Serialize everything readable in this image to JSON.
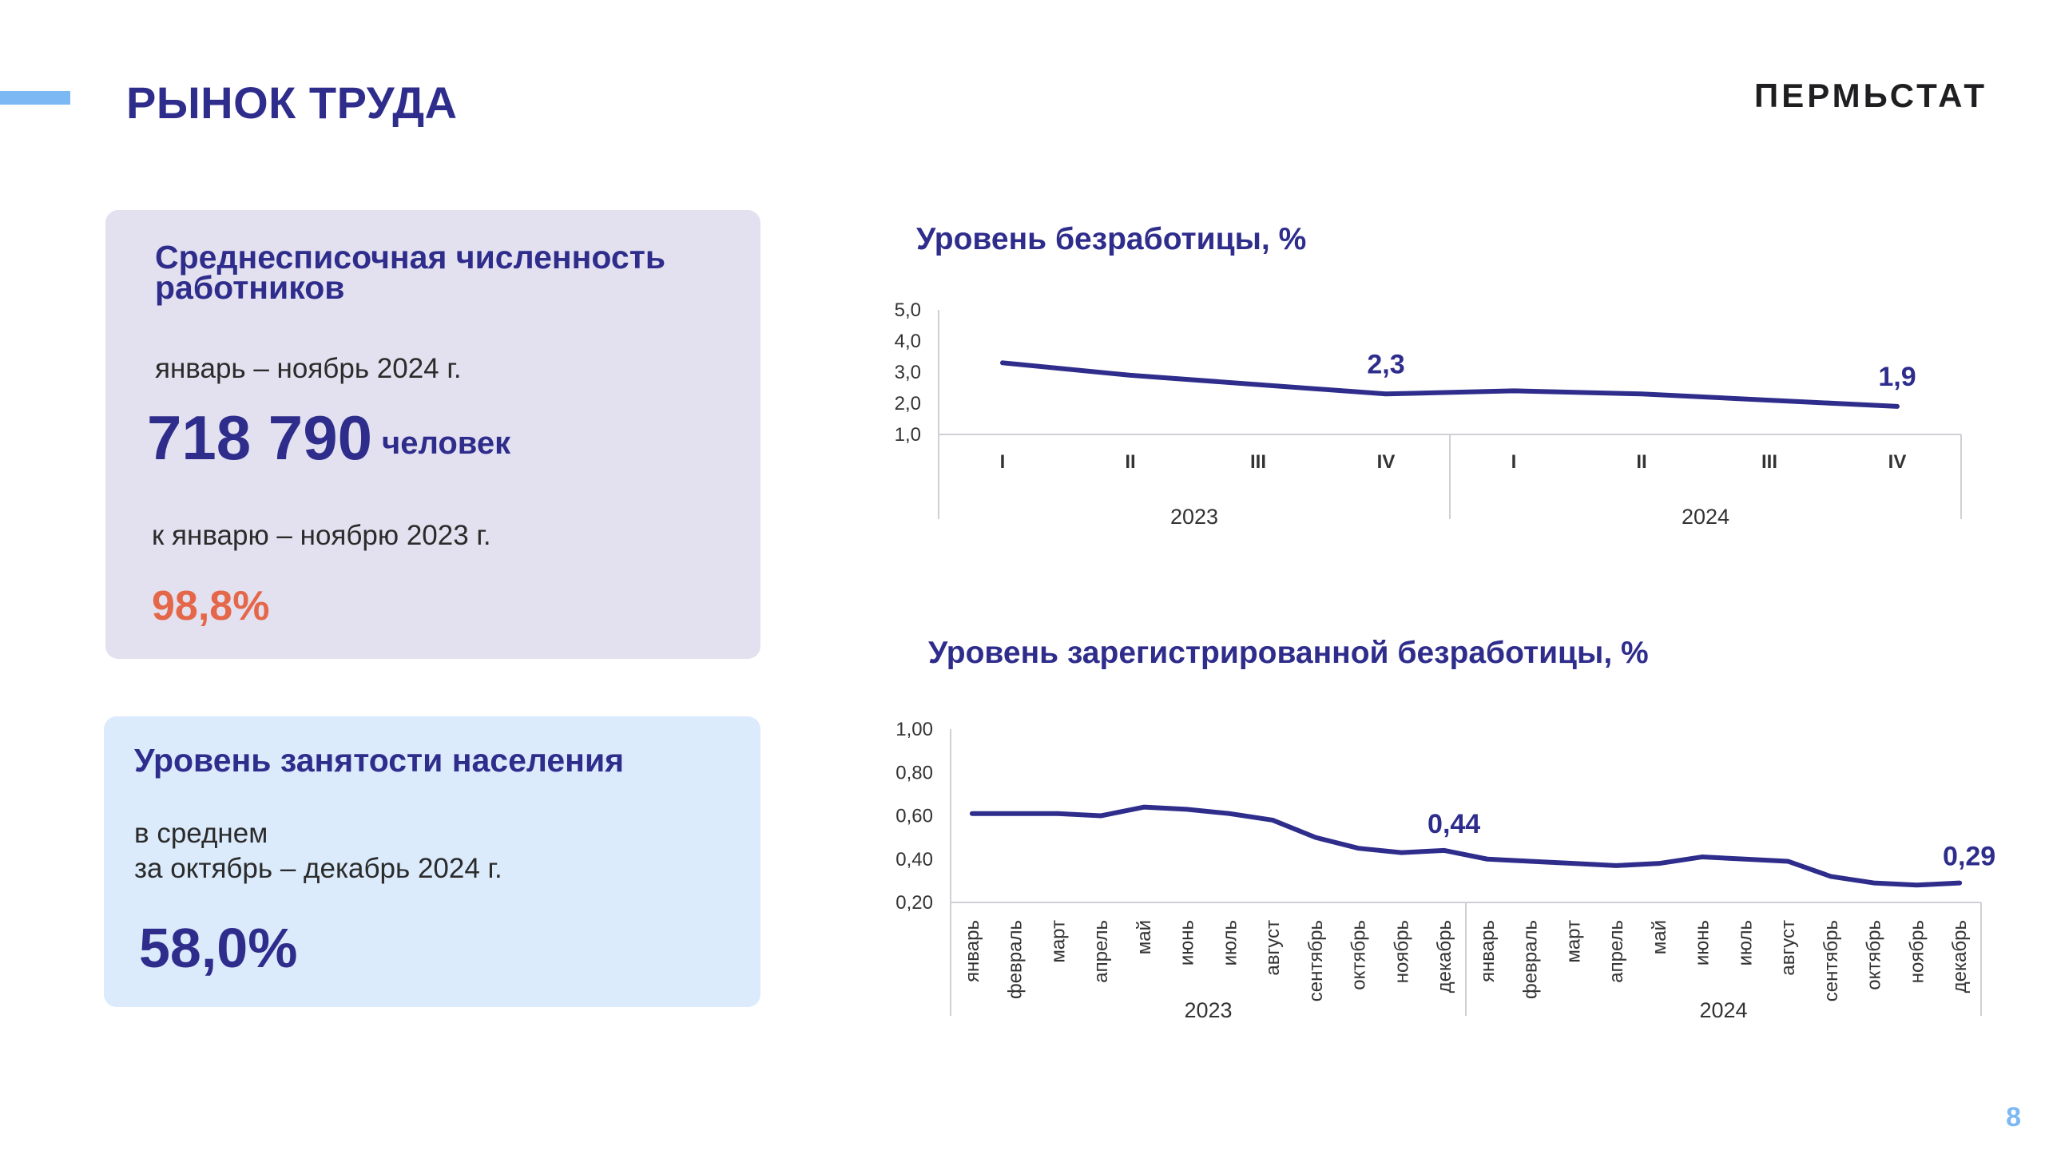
{
  "header": {
    "title": "РЫНОК ТРУДА",
    "logo": "ПЕРМЬСТАТ",
    "page_number": "8"
  },
  "avg_card": {
    "title": "Среднесписочная численность работников",
    "period": "январь – ноябрь 2024 г.",
    "value": "718 790",
    "unit": "человек",
    "compare_label": "к январю – ноябрю 2023 г.",
    "compare_value": "98,8%",
    "bg_color": "#e3e1ef"
  },
  "employment_card": {
    "title": "Уровень занятости населения",
    "period_line1": "в среднем",
    "period_line2": "за октябрь – декабрь 2024 г.",
    "value": "58,0%",
    "bg_color": "#dbebfc"
  },
  "colors": {
    "accent": "#2f2d8c",
    "orange": "#e5674a",
    "light_blue": "#7cb8f3",
    "line": "#2f2d8c"
  },
  "chart_data": [
    {
      "type": "line",
      "title": "Уровень безработицы, %",
      "categories": [
        "I",
        "II",
        "III",
        "IV",
        "I",
        "II",
        "III",
        "IV"
      ],
      "groups": [
        {
          "label": "2023",
          "count": 4
        },
        {
          "label": "2024",
          "count": 4
        }
      ],
      "series": [
        {
          "values": [
            3.3,
            2.9,
            2.6,
            2.3,
            2.4,
            2.3,
            2.1,
            1.9
          ]
        }
      ],
      "ylim": [
        1.0,
        5.0
      ],
      "yticks": [
        "1,0",
        "2,0",
        "3,0",
        "4,0",
        "5,0"
      ],
      "annotations": [
        {
          "index": 3,
          "label": "2,3"
        },
        {
          "index": 7,
          "label": "1,9"
        }
      ],
      "grid": false
    },
    {
      "type": "line",
      "title": "Уровень зарегистрированной безработицы, %",
      "categories": [
        "январь",
        "февраль",
        "март",
        "апрель",
        "май",
        "июнь",
        "июль",
        "август",
        "сентябрь",
        "октябрь",
        "ноябрь",
        "декабрь",
        "январь",
        "февраль",
        "март",
        "апрель",
        "май",
        "июнь",
        "июль",
        "август",
        "сентябрь",
        "октябрь",
        "ноябрь",
        "декабрь"
      ],
      "groups": [
        {
          "label": "2023",
          "count": 12
        },
        {
          "label": "2024",
          "count": 12
        }
      ],
      "series": [
        {
          "values": [
            0.61,
            0.61,
            0.61,
            0.6,
            0.64,
            0.63,
            0.61,
            0.58,
            0.5,
            0.45,
            0.43,
            0.44,
            0.4,
            0.39,
            0.38,
            0.37,
            0.38,
            0.41,
            0.4,
            0.39,
            0.32,
            0.29,
            0.28,
            0.29
          ]
        }
      ],
      "ylim": [
        0.2,
        1.0
      ],
      "yticks": [
        "0,20",
        "0,40",
        "0,60",
        "0,80",
        "1,00"
      ],
      "annotations": [
        {
          "index": 11,
          "label": "0,44"
        },
        {
          "index": 23,
          "label": "0,29"
        }
      ],
      "grid": false
    }
  ]
}
